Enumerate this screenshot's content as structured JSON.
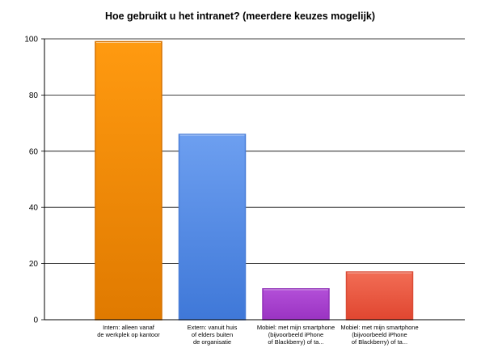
{
  "chart_data": {
    "type": "bar",
    "title": "Hoe gebruikt u het intranet? (meerdere keuzes mogelijk)",
    "xlabel": "",
    "ylabel": "",
    "ylim": [
      0,
      100
    ],
    "yticks": [
      0,
      20,
      40,
      60,
      80,
      100
    ],
    "grid": true,
    "categories": [
      [
        "Intern: alleen vanaf",
        "de werkplek op kantoor"
      ],
      [
        "Extern: vanuit huis",
        "of elders buiten",
        "de organisatie"
      ],
      [
        "Mobiel: met mijn smartphone",
        "(bijvoorbeeld iPhone",
        "of Blackberry) of ta..."
      ],
      [
        "Mobiel: met mijn smartphone",
        "(bijvoorbeeld iPhone",
        "of Blackberry) of ta..."
      ]
    ],
    "values": [
      99,
      66,
      11,
      17
    ],
    "colors": [
      {
        "top": "#ff9a10",
        "bottom": "#e07a00",
        "stroke": "#d57200"
      },
      {
        "top": "#6d9ff0",
        "bottom": "#3f78d8",
        "stroke": "#4a7ed8"
      },
      {
        "top": "#b34fd8",
        "bottom": "#9a33c2",
        "stroke": "#9130b8"
      },
      {
        "top": "#f26d55",
        "bottom": "#e04630",
        "stroke": "#da4a35"
      }
    ]
  }
}
